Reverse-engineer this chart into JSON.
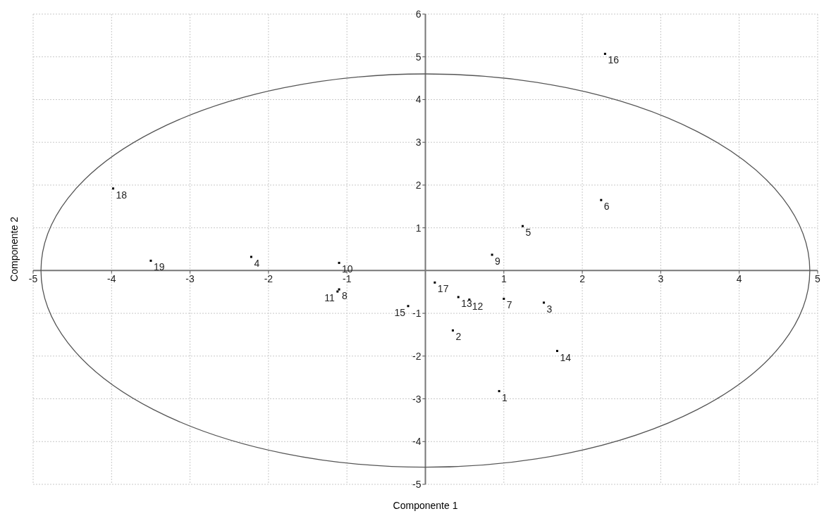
{
  "chart_data": {
    "type": "scatter",
    "xlabel": "Componente 1",
    "ylabel": "Componente 2",
    "xlim": [
      -5,
      5
    ],
    "ylim": [
      -5,
      6
    ],
    "xticks": [
      -5,
      -4,
      -3,
      -2,
      -1,
      1,
      2,
      3,
      4,
      5
    ],
    "yticks": [
      -5,
      -4,
      -3,
      -2,
      -1,
      1,
      2,
      3,
      4,
      5,
      6
    ],
    "grid": true,
    "marker": "square",
    "series": [
      {
        "type": "scatter",
        "color": "#000000",
        "x": [
          0.94,
          0.35,
          1.51,
          -2.22,
          1.24,
          2.24,
          1.0,
          -1.1,
          0.85,
          -1.1,
          -1.12,
          0.56,
          0.42,
          1.68,
          -0.22,
          2.29,
          0.12,
          -3.98,
          -3.5
        ],
        "values": [
          -2.82,
          -1.4,
          -0.75,
          0.32,
          1.04,
          1.65,
          -0.66,
          -0.44,
          0.37,
          0.18,
          -0.49,
          -0.68,
          -0.62,
          -1.88,
          -0.83,
          5.07,
          -0.28,
          1.92,
          0.23
        ]
      }
    ],
    "annotations": [
      {
        "text": "1",
        "x": 0.94,
        "y": -2.82
      },
      {
        "text": "2",
        "x": 0.35,
        "y": -1.4
      },
      {
        "text": "3",
        "x": 1.51,
        "y": -0.75
      },
      {
        "text": "4",
        "x": -2.22,
        "y": 0.32
      },
      {
        "text": "5",
        "x": 1.24,
        "y": 1.04
      },
      {
        "text": "6",
        "x": 2.24,
        "y": 1.65
      },
      {
        "text": "7",
        "x": 1.0,
        "y": -0.66
      },
      {
        "text": "8",
        "x": -1.1,
        "y": -0.44
      },
      {
        "text": "9",
        "x": 0.85,
        "y": 0.37
      },
      {
        "text": "10",
        "x": -1.1,
        "y": 0.18
      },
      {
        "text": "11",
        "x": -1.12,
        "y": -0.49
      },
      {
        "text": "12",
        "x": 0.56,
        "y": -0.68
      },
      {
        "text": "13",
        "x": 0.42,
        "y": -0.62
      },
      {
        "text": "14",
        "x": 1.68,
        "y": -1.88
      },
      {
        "text": "15",
        "x": -0.22,
        "y": -0.83
      },
      {
        "text": "16",
        "x": 2.29,
        "y": 5.07
      },
      {
        "text": "17",
        "x": 0.12,
        "y": -0.28
      },
      {
        "text": "18",
        "x": -3.98,
        "y": 1.92
      },
      {
        "text": "19",
        "x": -3.5,
        "y": 0.23
      }
    ]
  }
}
